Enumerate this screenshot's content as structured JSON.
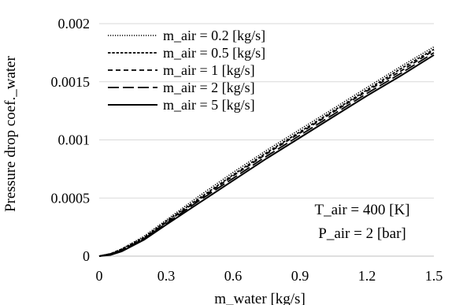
{
  "chart_data": {
    "type": "line",
    "xlabel": "m_water [kg/s]",
    "ylabel": "Pressure drop coef._water",
    "xlim": [
      0,
      1.5
    ],
    "ylim": [
      0,
      0.002
    ],
    "x_ticks": [
      "0",
      "0.3",
      "0.6",
      "0.9",
      "1.2",
      "1.5"
    ],
    "y_ticks": [
      "0",
      "0.0005",
      "0.001",
      "0.0015",
      "0.002"
    ],
    "x_tick_values": [
      0,
      0.3,
      0.6,
      0.9,
      1.2,
      1.5
    ],
    "y_tick_values": [
      0,
      0.0005,
      0.001,
      0.0015,
      0.002
    ],
    "grid": "horizontal",
    "legend_position": "top-left",
    "x": [
      0,
      0.05,
      0.1,
      0.2,
      0.3,
      0.45,
      0.6,
      0.75,
      0.9,
      1.05,
      1.2,
      1.35,
      1.5
    ],
    "series": [
      {
        "name": "m_air = 0.2 [kg/s]",
        "style": "dotted",
        "values": [
          0,
          2e-05,
          6e-05,
          0.00017,
          0.00031,
          0.00052,
          0.00072,
          0.00091,
          0.00109,
          0.00127,
          0.00145,
          0.00163,
          0.0018
        ]
      },
      {
        "name": "m_air = 0.5 [kg/s]",
        "style": "short-dash",
        "values": [
          0,
          2e-05,
          6e-05,
          0.00016,
          0.0003,
          0.0005,
          0.0007,
          0.00089,
          0.00107,
          0.00125,
          0.00143,
          0.00161,
          0.00178
        ]
      },
      {
        "name": "m_air = 1 [kg/s]",
        "style": "dash",
        "values": [
          0,
          2e-05,
          5e-05,
          0.00015,
          0.00029,
          0.00049,
          0.00069,
          0.00088,
          0.00106,
          0.00124,
          0.00142,
          0.00159,
          0.00177
        ]
      },
      {
        "name": "m_air = 2 [kg/s]",
        "style": "long-dash",
        "values": [
          0,
          2e-05,
          5e-05,
          0.00015,
          0.00028,
          0.00048,
          0.00067,
          0.00086,
          0.00104,
          0.00122,
          0.0014,
          0.00157,
          0.00175
        ]
      },
      {
        "name": "m_air = 5 [kg/s]",
        "style": "solid",
        "values": [
          0,
          1e-05,
          4e-05,
          0.00014,
          0.00027,
          0.00046,
          0.00065,
          0.00084,
          0.00102,
          0.0012,
          0.00138,
          0.00155,
          0.00173
        ]
      }
    ],
    "annotations": [
      "T_air = 400 [K]",
      "P_air = 2 [bar]"
    ]
  }
}
